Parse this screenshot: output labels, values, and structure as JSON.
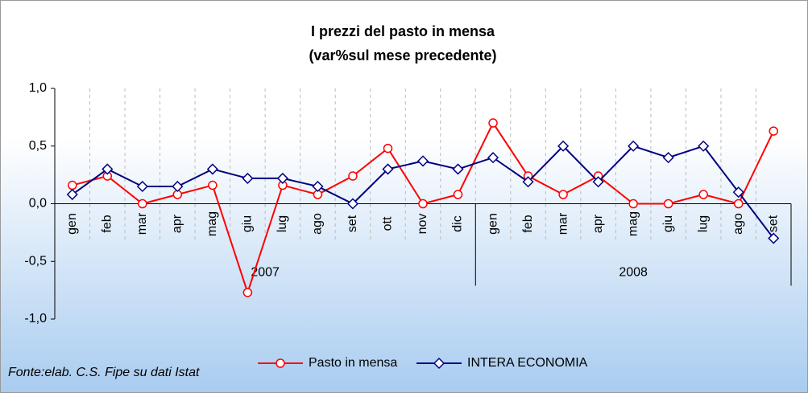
{
  "chart_data": {
    "type": "line",
    "title": "I prezzi del pasto in mensa",
    "subtitle": "(var%sul mese precedente)",
    "category_groups": [
      {
        "label": "2007",
        "categories": [
          "gen",
          "feb",
          "mar",
          "apr",
          "mag",
          "giu",
          "lug",
          "ago",
          "set",
          "ott",
          "nov",
          "dic"
        ]
      },
      {
        "label": "2008",
        "categories": [
          "gen",
          "feb",
          "mar",
          "apr",
          "mag",
          "giu",
          "lug",
          "ago",
          "set"
        ]
      }
    ],
    "series": [
      {
        "name": "Pasto in mensa",
        "color": "#ff0000",
        "marker": "circle",
        "values": [
          0.16,
          0.24,
          0.0,
          0.08,
          0.16,
          -0.77,
          0.16,
          0.08,
          0.24,
          0.48,
          0.0,
          0.08,
          0.7,
          0.24,
          0.08,
          0.24,
          0.0,
          0.0,
          0.08,
          0.0,
          0.63
        ]
      },
      {
        "name": "INTERA ECONOMIA",
        "color": "#000080",
        "marker": "diamond",
        "values": [
          0.08,
          0.3,
          0.15,
          0.15,
          0.3,
          0.22,
          0.22,
          0.15,
          0.0,
          0.3,
          0.37,
          0.3,
          0.4,
          0.19,
          0.5,
          0.19,
          0.5,
          0.4,
          0.5,
          0.1,
          -0.3
        ]
      }
    ],
    "ylim": [
      -1.0,
      1.0
    ],
    "yticks": [
      {
        "value": 1.0,
        "label": "1,0"
      },
      {
        "value": 0.5,
        "label": "0,5"
      },
      {
        "value": 0.0,
        "label": "0,0"
      },
      {
        "value": -0.5,
        "label": "-0,5"
      },
      {
        "value": -1.0,
        "label": "-1,0"
      }
    ],
    "source": "Fonte:elab. C.S. Fipe su dati Istat",
    "legend": "bottom"
  }
}
